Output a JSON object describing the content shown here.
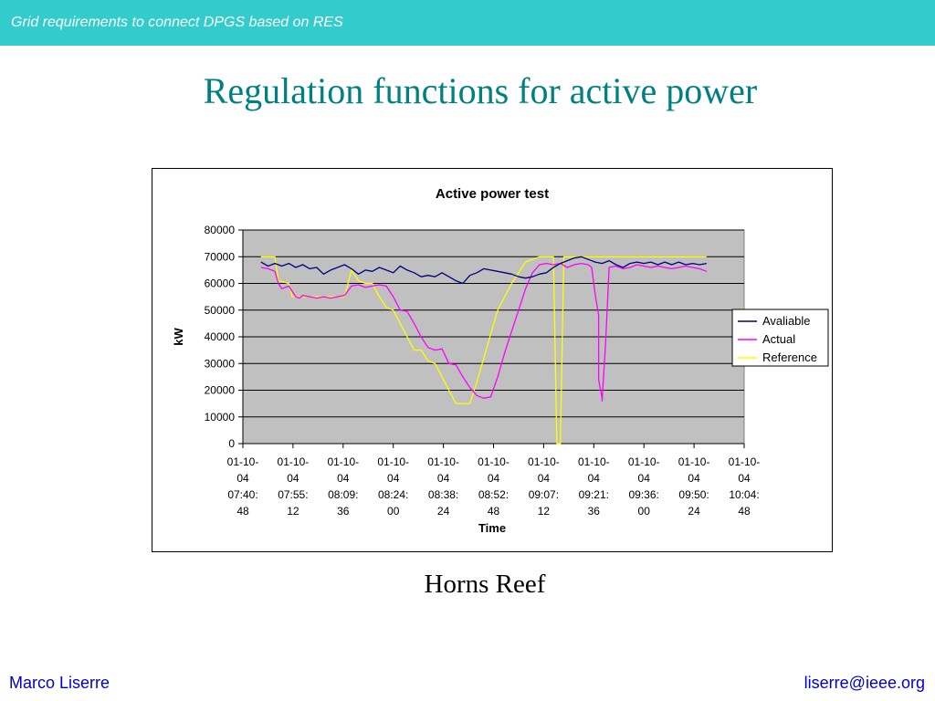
{
  "header": {
    "text": "Grid requirements to connect DPGS based on RES"
  },
  "slide": {
    "title": "Regulation functions for active power",
    "caption": "Horns Reef"
  },
  "footer": {
    "author": "Marco Liserre",
    "email": "liserre@ieee.org"
  },
  "colors": {
    "topbar": "#33cccc",
    "title": "#008080",
    "footer": "#0000cc",
    "plot_bg": "#c0c0c0",
    "available": "#000080",
    "actual": "#ff00ff",
    "reference": "#ffff00"
  },
  "chart_data": {
    "type": "line",
    "title": "Active power test",
    "xlabel": "Time",
    "ylabel": "kW",
    "ylim": [
      0,
      80000
    ],
    "yticks": [
      0,
      10000,
      20000,
      30000,
      40000,
      50000,
      60000,
      70000,
      80000
    ],
    "xticks": [
      [
        "01-10-",
        "04",
        "07:40:",
        "48"
      ],
      [
        "01-10-",
        "04",
        "07:55:",
        "12"
      ],
      [
        "01-10-",
        "04",
        "08:09:",
        "36"
      ],
      [
        "01-10-",
        "04",
        "08:24:",
        "00"
      ],
      [
        "01-10-",
        "04",
        "08:38:",
        "24"
      ],
      [
        "01-10-",
        "04",
        "08:52:",
        "48"
      ],
      [
        "01-10-",
        "04",
        "09:07:",
        "12"
      ],
      [
        "01-10-",
        "04",
        "09:21:",
        "36"
      ],
      [
        "01-10-",
        "04",
        "09:36:",
        "00"
      ],
      [
        "01-10-",
        "04",
        "09:50:",
        "24"
      ],
      [
        "01-10-",
        "04",
        "10:04:",
        "48"
      ]
    ],
    "grid": true,
    "legend_position": "right",
    "series": [
      {
        "name": "Avaliable",
        "color": "#000080",
        "x": [
          "07:46",
          "07:48",
          "07:50",
          "07:52",
          "07:54",
          "07:56",
          "07:58",
          "08:00",
          "08:02",
          "08:04",
          "08:06",
          "08:08",
          "08:10",
          "08:12",
          "08:14",
          "08:16",
          "08:18",
          "08:20",
          "08:22",
          "08:24",
          "08:26",
          "08:28",
          "08:30",
          "08:32",
          "08:34",
          "08:36",
          "08:38",
          "08:40",
          "08:42",
          "08:44",
          "08:46",
          "08:48",
          "08:50",
          "08:52",
          "08:54",
          "08:56",
          "08:58",
          "09:00",
          "09:02",
          "09:04",
          "09:06",
          "09:08",
          "09:10",
          "09:12",
          "09:14",
          "09:16",
          "09:18",
          "09:20",
          "09:22",
          "09:24",
          "09:26",
          "09:28",
          "09:30",
          "09:32",
          "09:34",
          "09:36",
          "09:38",
          "09:40",
          "09:42",
          "09:44",
          "09:46",
          "09:48",
          "09:50",
          "09:52",
          "09:54"
        ],
        "values": [
          68000,
          66500,
          67500,
          66500,
          67500,
          66000,
          67000,
          65500,
          66000,
          63500,
          65000,
          66000,
          67000,
          65500,
          63500,
          65000,
          64500,
          66000,
          65000,
          64000,
          66500,
          65000,
          64000,
          62500,
          63000,
          62500,
          64000,
          62500,
          61000,
          60000,
          63000,
          64000,
          65500,
          65000,
          64500,
          64000,
          63500,
          62500,
          62000,
          62500,
          63500,
          64000,
          66000,
          67500,
          68500,
          69500,
          70000,
          69000,
          68000,
          67500,
          68500,
          67000,
          66000,
          67500,
          68000,
          67500,
          68000,
          67000,
          68000,
          67000,
          68000,
          67000,
          67500,
          67000,
          67500
        ]
      },
      {
        "name": "Actual",
        "color": "#ff00ff",
        "x": [
          "07:46",
          "07:48",
          "07:50",
          "07:51",
          "07:52",
          "07:54",
          "07:56",
          "07:57",
          "07:58",
          "08:00",
          "08:02",
          "08:04",
          "08:06",
          "08:08",
          "08:10",
          "08:12",
          "08:14",
          "08:16",
          "08:18",
          "08:20",
          "08:22",
          "08:24",
          "08:26",
          "08:28",
          "08:30",
          "08:32",
          "08:34",
          "08:36",
          "08:38",
          "08:40",
          "08:42",
          "08:44",
          "08:46",
          "08:48",
          "08:50",
          "08:52",
          "08:54",
          "08:56",
          "08:58",
          "09:00",
          "09:02",
          "09:04",
          "09:06",
          "09:08",
          "09:10",
          "09:12",
          "09:14",
          "09:16",
          "09:18",
          "09:20",
          "09:21",
          "09:22",
          "09:23",
          "09:23",
          "09:24",
          "09:24",
          "09:25",
          "09:26",
          "09:28",
          "09:30",
          "09:32",
          "09:34",
          "09:36",
          "09:38",
          "09:40",
          "09:42",
          "09:44",
          "09:46",
          "09:48",
          "09:50",
          "09:52",
          "09:54"
        ],
        "values": [
          66000,
          65500,
          64500,
          60000,
          58000,
          59000,
          55000,
          54500,
          55500,
          55000,
          54500,
          55000,
          54500,
          55000,
          55500,
          59000,
          59500,
          58500,
          59000,
          59500,
          59000,
          55000,
          50000,
          49500,
          45000,
          40000,
          36000,
          35000,
          35500,
          30000,
          29500,
          25000,
          21000,
          18000,
          17000,
          17500,
          25000,
          34000,
          42000,
          50000,
          58000,
          64000,
          67000,
          67500,
          67000,
          67500,
          66000,
          67000,
          67500,
          67000,
          66000,
          56000,
          48000,
          24000,
          17000,
          16000,
          38000,
          66000,
          66500,
          65500,
          66000,
          67000,
          66500,
          66000,
          66500,
          66000,
          65500,
          66000,
          66500,
          66000,
          65500,
          64500
        ]
      },
      {
        "name": "Reference",
        "color": "#ffff00",
        "x": [
          "07:46",
          "07:50",
          "07:51",
          "07:54",
          "07:55",
          "08:04",
          "08:06",
          "08:10",
          "08:12",
          "08:14",
          "08:16",
          "08:18",
          "08:20",
          "08:22",
          "08:24",
          "08:26",
          "08:28",
          "08:30",
          "08:32",
          "08:34",
          "08:36",
          "08:38",
          "08:40",
          "08:42",
          "08:44",
          "08:46",
          "08:48",
          "08:50",
          "08:52",
          "08:54",
          "08:58",
          "09:02",
          "09:06",
          "09:08",
          "09:10",
          "09:11",
          "09:11",
          "09:12",
          "09:13",
          "09:14",
          "09:15",
          "09:54"
        ],
        "values": [
          70000,
          70000,
          61000,
          60000,
          55000,
          55000,
          55000,
          55000,
          65000,
          61000,
          60000,
          60000,
          55000,
          51000,
          50000,
          45000,
          40000,
          35000,
          35000,
          31000,
          30000,
          25000,
          20000,
          15000,
          15000,
          15000,
          23000,
          32000,
          41000,
          50000,
          60000,
          68000,
          70000,
          70000,
          70000,
          0,
          0,
          0,
          70000,
          70000,
          70000,
          70000
        ]
      }
    ]
  }
}
